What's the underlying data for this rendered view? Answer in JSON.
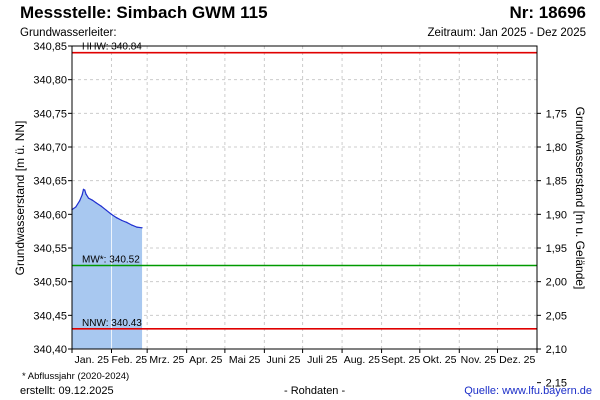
{
  "header": {
    "title": "Messstelle: Simbach GWM 115",
    "station_no": "Nr: 18696",
    "aquifer_label": "Grundwasserleiter:",
    "period": "Zeitraum: Jan 2025 - Dez 2025"
  },
  "footer": {
    "footnote": "* Abflussjahr (2020-2024)",
    "created": "erstellt:  09.12.2025",
    "raw_data": "- Rohdaten -",
    "source": "Quelle: www.lfu.bayern.de"
  },
  "colors": {
    "extreme_line": "#e00000",
    "mean_line": "#009a00",
    "area_fill": "#a8c8f0",
    "series_line": "#1f2fd0",
    "grid": "#cccccc",
    "source_link": "#1a2dc8"
  },
  "chart_data": {
    "type": "area",
    "ylabel": "Grundwasserstand [m ü. NN]",
    "ylabel_right": "Grundwasserstand [m u. Gelände]",
    "ylim": [
      340.4,
      340.85
    ],
    "yticks": [
      "340,40",
      "340,45",
      "340,50",
      "340,55",
      "340,60",
      "340,65",
      "340,70",
      "340,75",
      "340,80",
      "340,85"
    ],
    "y2_ticks": [
      "1,75",
      "1,80",
      "1,85",
      "1,90",
      "1,95",
      "2,00",
      "2,05",
      "2,10",
      "2,15"
    ],
    "y2_reference": {
      "nn": 342.5,
      "note": "depth below ground = 342.5 - level"
    },
    "x_ticks": [
      "Jan. 25",
      "Feb. 25",
      "Mrz. 25",
      "Apr. 25",
      "Mai 25",
      "Juni 25",
      "Juli 25",
      "Aug. 25",
      "Sept. 25",
      "Okt. 25",
      "Nov. 25",
      "Dez. 25"
    ],
    "grid": true,
    "reference_lines": [
      {
        "label": "HHW: 340.84",
        "value": 340.84,
        "color": "#e00000"
      },
      {
        "label": "MW*: 340.52",
        "value": 340.524,
        "color": "#009a00"
      },
      {
        "label": "NNW: 340.43",
        "value": 340.43,
        "color": "#e00000"
      }
    ],
    "series": [
      {
        "x": [
          "2025-01-01",
          "2025-01-04",
          "2025-01-07",
          "2025-01-09",
          "2025-01-10",
          "2025-01-11",
          "2025-01-12",
          "2025-01-14",
          "2025-01-17",
          "2025-01-20",
          "2025-01-24",
          "2025-01-28",
          "2025-02-01",
          "2025-02-05",
          "2025-02-09",
          "2025-02-13",
          "2025-02-17",
          "2025-02-21",
          "2025-02-25"
        ],
        "values": [
          340.607,
          340.611,
          340.62,
          340.629,
          340.637,
          340.636,
          340.63,
          340.624,
          340.621,
          340.617,
          340.612,
          340.606,
          340.6,
          340.595,
          340.591,
          340.588,
          340.584,
          340.581,
          340.58
        ]
      }
    ]
  }
}
